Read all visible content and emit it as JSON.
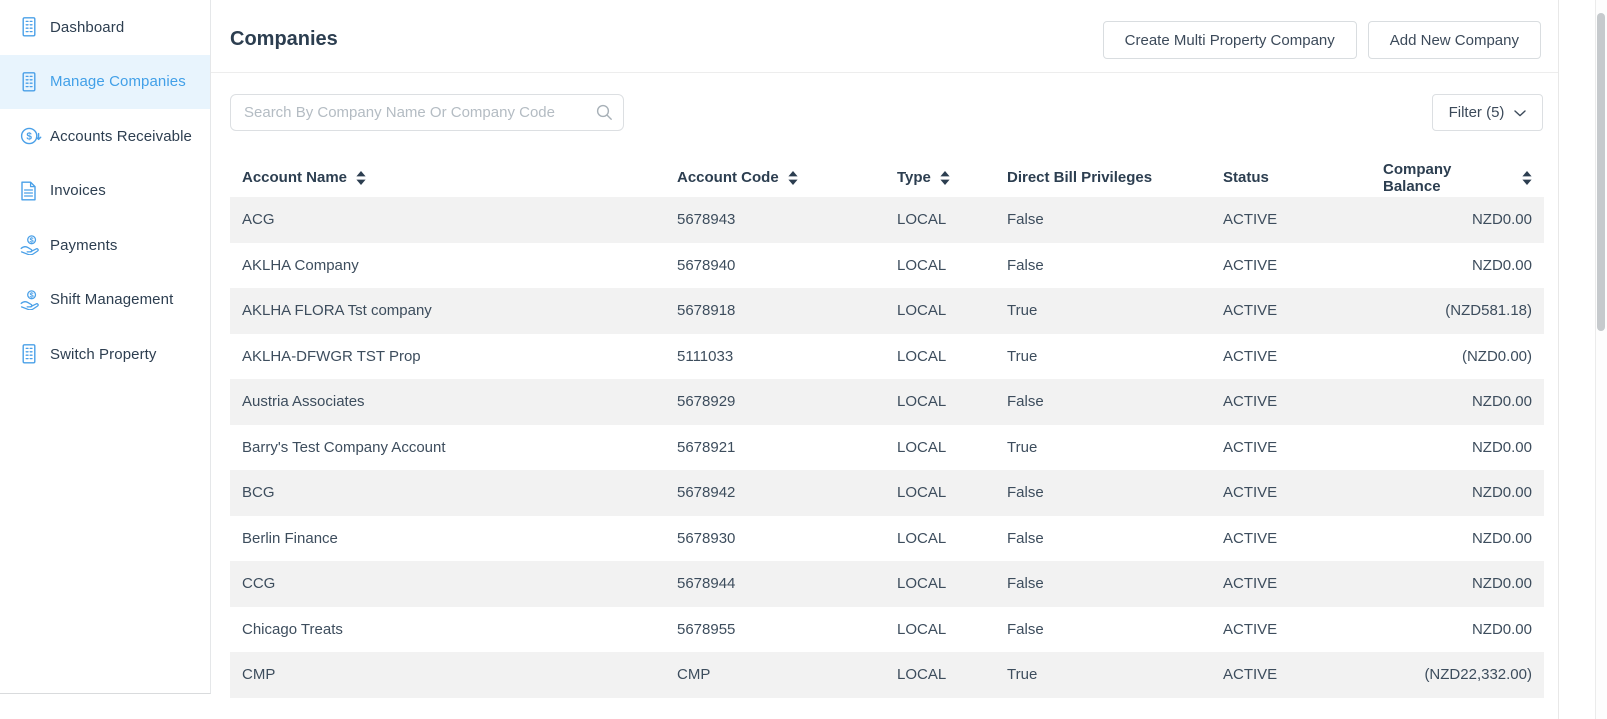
{
  "sidebar": {
    "items": [
      {
        "label": "Dashboard",
        "icon": "building-icon",
        "selected": false
      },
      {
        "label": "Manage Companies",
        "icon": "building-icon",
        "selected": true
      },
      {
        "label": "Accounts Receivable",
        "icon": "dollar-circle-icon",
        "selected": false
      },
      {
        "label": "Invoices",
        "icon": "invoice-icon",
        "selected": false
      },
      {
        "label": "Payments",
        "icon": "hand-coin-icon",
        "selected": false
      },
      {
        "label": "Shift Management",
        "icon": "hand-coin-icon",
        "selected": false
      },
      {
        "label": "Switch Property",
        "icon": "building-icon",
        "selected": false
      }
    ]
  },
  "header": {
    "title": "Companies",
    "create_multi_label": "Create Multi Property Company",
    "add_new_label": "Add New Company"
  },
  "toolbar": {
    "search_placeholder": "Search By Company Name Or Company Code",
    "search_value": "",
    "filter_label": "Filter (5)"
  },
  "table": {
    "columns": [
      {
        "label": "Account Name",
        "sortable": true
      },
      {
        "label": "Account Code",
        "sortable": true
      },
      {
        "label": "Type",
        "sortable": true
      },
      {
        "label": "Direct Bill Privileges",
        "sortable": false
      },
      {
        "label": "Status",
        "sortable": false
      },
      {
        "label": "Company Balance",
        "sortable": true
      }
    ],
    "rows": [
      [
        "ACG",
        "5678943",
        "LOCAL",
        "False",
        "ACTIVE",
        "NZD0.00"
      ],
      [
        "AKLHA Company",
        "5678940",
        "LOCAL",
        "False",
        "ACTIVE",
        "NZD0.00"
      ],
      [
        "AKLHA FLORA Tst company",
        "5678918",
        "LOCAL",
        "True",
        "ACTIVE",
        "(NZD581.18)"
      ],
      [
        "AKLHA-DFWGR TST Prop",
        "5111033",
        "LOCAL",
        "True",
        "ACTIVE",
        "(NZD0.00)"
      ],
      [
        "Austria Associates",
        "5678929",
        "LOCAL",
        "False",
        "ACTIVE",
        "NZD0.00"
      ],
      [
        "Barry's Test Company Account",
        "5678921",
        "LOCAL",
        "True",
        "ACTIVE",
        "NZD0.00"
      ],
      [
        "BCG",
        "5678942",
        "LOCAL",
        "False",
        "ACTIVE",
        "NZD0.00"
      ],
      [
        "Berlin Finance",
        "5678930",
        "LOCAL",
        "False",
        "ACTIVE",
        "NZD0.00"
      ],
      [
        "CCG",
        "5678944",
        "LOCAL",
        "False",
        "ACTIVE",
        "NZD0.00"
      ],
      [
        "Chicago Treats",
        "5678955",
        "LOCAL",
        "False",
        "ACTIVE",
        "NZD0.00"
      ],
      [
        "CMP",
        "CMP",
        "LOCAL",
        "True",
        "ACTIVE",
        "(NZD22,332.00)"
      ]
    ]
  },
  "colors": {
    "accent_blue": "#42a0e8",
    "selected_item_bg": "#e8f4fd",
    "heading_navy": "#2c3e50",
    "body_text": "#3d4d5d",
    "row_alt_bg": "#f2f2f2",
    "border": "#dcdfe2"
  }
}
